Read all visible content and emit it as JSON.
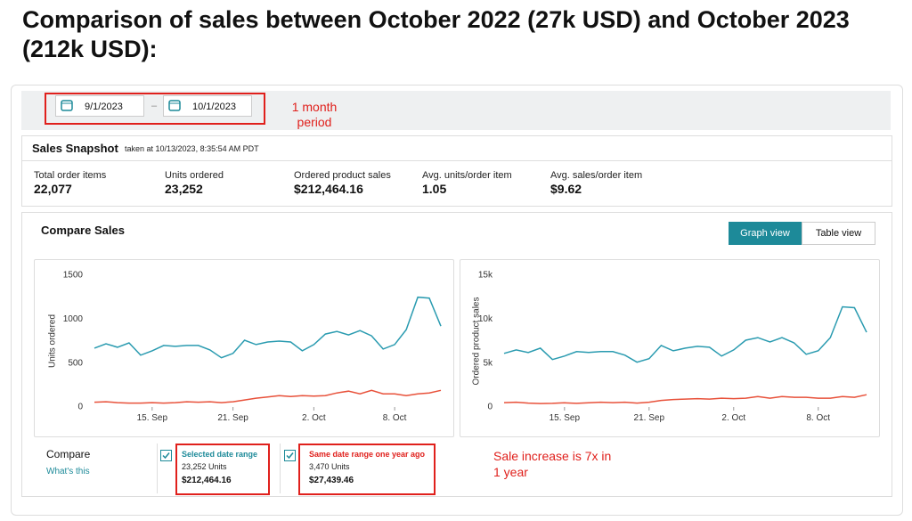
{
  "heading": "Comparison of sales between October 2022 (27k USD) and October 2023 (212k USD):",
  "date_range": {
    "start": "9/1/2023",
    "separator": "–",
    "end": "10/1/2023",
    "note": "1 month period"
  },
  "snapshot": {
    "title": "Sales Snapshot",
    "taken": "taken at 10/13/2023, 8:35:54 AM PDT",
    "metrics": [
      {
        "label": "Total order items",
        "value": "22,077"
      },
      {
        "label": "Units ordered",
        "value": "23,252"
      },
      {
        "label": "Ordered product sales",
        "value": "$212,464.16"
      },
      {
        "label": "Avg. units/order item",
        "value": "1.05"
      },
      {
        "label": "Avg. sales/order item",
        "value": "$9.62"
      }
    ]
  },
  "compare_sales": {
    "title": "Compare Sales",
    "views": [
      "Graph view",
      "Table view"
    ],
    "compare": "Compare",
    "whats_this": "What's this",
    "legend": [
      {
        "name": "Selected date range",
        "units": "23,252 Units",
        "sales": "$212,464.16"
      },
      {
        "name": "Same date range one year ago",
        "units": "3,470 Units",
        "sales": "$27,439.46"
      }
    ],
    "note": "Sale increase is 7x in 1 year"
  },
  "chart_data": [
    {
      "type": "line",
      "y_label": "Units ordered",
      "categories": [
        null,
        null,
        null,
        null,
        null,
        "15. Sep",
        null,
        null,
        null,
        null,
        null,
        null,
        "21. Sep",
        null,
        null,
        null,
        null,
        null,
        null,
        "2. Oct",
        null,
        null,
        null,
        null,
        null,
        null,
        "8. Oct",
        null,
        null,
        null,
        null
      ],
      "series": [
        {
          "color": "#2a9bb0",
          "values": [
            670,
            720,
            680,
            730,
            590,
            640,
            700,
            690,
            700,
            700,
            650,
            560,
            610,
            760,
            710,
            740,
            750,
            740,
            640,
            710,
            830,
            860,
            820,
            870,
            810,
            660,
            710,
            880,
            1250,
            1240,
            920
          ]
        },
        {
          "color": "#e8513a",
          "values": [
            55,
            60,
            50,
            45,
            45,
            50,
            45,
            50,
            60,
            55,
            60,
            50,
            60,
            80,
            100,
            115,
            130,
            120,
            130,
            125,
            130,
            160,
            180,
            150,
            190,
            150,
            150,
            130,
            150,
            160,
            190
          ]
        }
      ],
      "ylim": [
        0,
        1500
      ],
      "yticks": [
        0,
        500,
        1000,
        1500
      ]
    },
    {
      "type": "line",
      "y_label": "Ordered product sales",
      "categories": [
        null,
        null,
        null,
        null,
        null,
        "15. Sep",
        null,
        null,
        null,
        null,
        null,
        null,
        "21. Sep",
        null,
        null,
        null,
        null,
        null,
        null,
        "2. Oct",
        null,
        null,
        null,
        null,
        null,
        null,
        "8. Oct",
        null,
        null,
        null,
        null
      ],
      "series": [
        {
          "color": "#2a9bb0",
          "values": [
            6100,
            6500,
            6200,
            6700,
            5400,
            5800,
            6300,
            6200,
            6300,
            6300,
            5900,
            5100,
            5500,
            7000,
            6400,
            6700,
            6900,
            6800,
            5800,
            6500,
            7600,
            7900,
            7400,
            7900,
            7300,
            6000,
            6400,
            7900,
            11400,
            11300,
            8500
          ]
        },
        {
          "color": "#e8513a",
          "values": [
            500,
            550,
            450,
            400,
            420,
            480,
            420,
            480,
            550,
            500,
            550,
            450,
            550,
            750,
            850,
            900,
            950,
            900,
            1000,
            950,
            1000,
            1200,
            1000,
            1200,
            1100,
            1100,
            1000,
            1000,
            1200,
            1100,
            1400
          ]
        }
      ],
      "ylim": [
        0,
        15000
      ],
      "yticks": [
        0,
        {
          "value": 5000,
          "label": "5k"
        },
        {
          "value": 10000,
          "label": "10k"
        },
        {
          "value": 15000,
          "label": "15k"
        }
      ]
    }
  ]
}
